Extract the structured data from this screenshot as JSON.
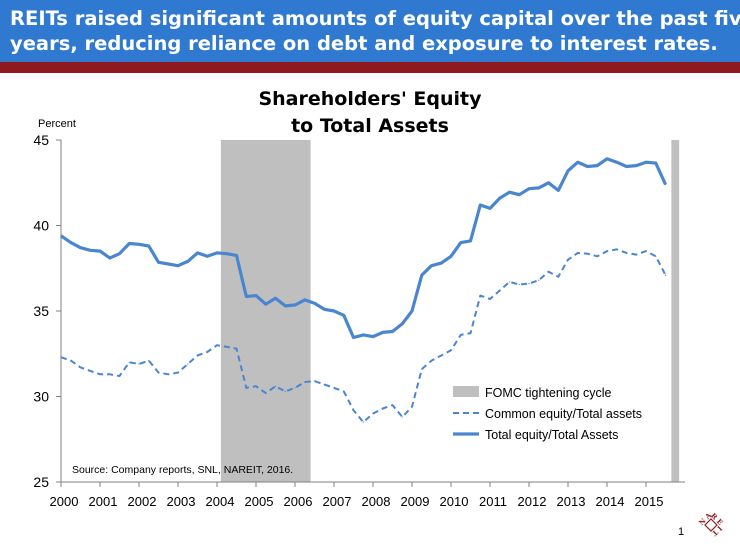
{
  "banner": {
    "line1": "REITs raised significant amounts of equity capital over the past five",
    "line2": "years, reducing reliance on debt and exposure to interest rates."
  },
  "page_number": "1",
  "logo": {
    "text": "NAREIT"
  },
  "colors": {
    "banner": "#2f7ad0",
    "accent_bar": "#8e1a1f",
    "series": "#4a86d0",
    "shade": "#bfbfbf"
  },
  "chart_data": {
    "type": "line",
    "title": "Shareholders' Equity to Total Assets",
    "title_lines": [
      "Shareholders' Equity",
      "to Total Assets"
    ],
    "ylabel": "Percent",
    "ylim": [
      25,
      45
    ],
    "yticks": [
      "25",
      "30",
      "35",
      "40",
      "45"
    ],
    "xlim": [
      2000,
      2016
    ],
    "xticks": [
      "2000",
      "2001",
      "2002",
      "2003",
      "2004",
      "2005",
      "2006",
      "2007",
      "2008",
      "2009",
      "2010",
      "2011",
      "2012",
      "2013",
      "2014",
      "2015"
    ],
    "grid": false,
    "legend_position": "bottom-right",
    "note": "Source: Company reports, SNL, NAREIT, 2016.",
    "shaded_periods": [
      {
        "name": "FOMC tightening cycle",
        "start": 2004.1,
        "end": 2006.4
      },
      {
        "name": "FOMC tightening cycle",
        "start": 2015.65,
        "end": 2015.85
      }
    ],
    "legend": [
      {
        "label": "FOMC tightening cycle",
        "kind": "shade"
      },
      {
        "label": "Common equity/Total assets",
        "kind": "dashed"
      },
      {
        "label": "Total equity/Total Assets",
        "kind": "solid"
      }
    ],
    "x": [
      2000.0,
      2000.25,
      2000.5,
      2000.75,
      2001.0,
      2001.25,
      2001.5,
      2001.75,
      2002.0,
      2002.25,
      2002.5,
      2002.75,
      2003.0,
      2003.25,
      2003.5,
      2003.75,
      2004.0,
      2004.25,
      2004.5,
      2004.75,
      2005.0,
      2005.25,
      2005.5,
      2005.75,
      2006.0,
      2006.25,
      2006.5,
      2006.75,
      2007.0,
      2007.25,
      2007.5,
      2007.75,
      2008.0,
      2008.25,
      2008.5,
      2008.75,
      2009.0,
      2009.25,
      2009.5,
      2009.75,
      2010.0,
      2010.25,
      2010.5,
      2010.75,
      2011.0,
      2011.25,
      2011.5,
      2011.75,
      2012.0,
      2012.25,
      2012.5,
      2012.75,
      2013.0,
      2013.25,
      2013.5,
      2013.75,
      2014.0,
      2014.25,
      2014.5,
      2014.75,
      2015.0,
      2015.25,
      2015.5
    ],
    "series": [
      {
        "name": "Total equity/Total Assets",
        "style": "solid",
        "values": [
          39.4,
          39.0,
          38.7,
          38.55,
          38.5,
          38.1,
          38.35,
          38.95,
          38.9,
          38.8,
          37.85,
          37.75,
          37.65,
          37.9,
          38.4,
          38.2,
          38.4,
          38.35,
          38.25,
          35.85,
          35.9,
          35.4,
          35.75,
          35.3,
          35.35,
          35.65,
          35.45,
          35.1,
          35.0,
          34.75,
          33.45,
          33.6,
          33.5,
          33.75,
          33.8,
          34.25,
          35.0,
          37.1,
          37.65,
          37.8,
          38.2,
          39.0,
          39.1,
          41.2,
          41.0,
          41.6,
          41.95,
          41.8,
          42.15,
          42.2,
          42.5,
          42.05,
          43.2,
          43.7,
          43.45,
          43.5,
          43.9,
          43.7,
          43.45,
          43.5,
          43.7,
          43.65,
          42.4
        ]
      },
      {
        "name": "Common equity/Total assets",
        "style": "dashed",
        "values": [
          32.3,
          32.1,
          31.7,
          31.5,
          31.3,
          31.3,
          31.2,
          32.0,
          31.9,
          32.1,
          31.4,
          31.3,
          31.4,
          31.9,
          32.4,
          32.6,
          33.0,
          32.9,
          32.8,
          30.5,
          30.6,
          30.2,
          30.6,
          30.3,
          30.5,
          30.85,
          30.9,
          30.7,
          30.5,
          30.3,
          29.2,
          28.5,
          29.0,
          29.3,
          29.5,
          28.8,
          29.4,
          31.6,
          32.1,
          32.4,
          32.7,
          33.6,
          33.7,
          35.9,
          35.7,
          36.2,
          36.7,
          36.55,
          36.6,
          36.8,
          37.3,
          37.0,
          38.0,
          38.4,
          38.35,
          38.2,
          38.5,
          38.6,
          38.4,
          38.3,
          38.5,
          38.2,
          37.1
        ]
      }
    ]
  }
}
